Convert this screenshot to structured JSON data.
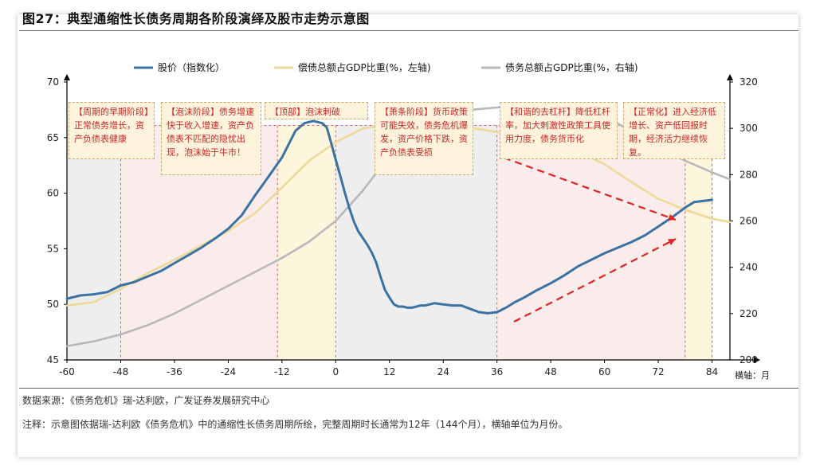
{
  "title": "图27：典型通缩性长债务周期各阶段演绎及股市走势示意图",
  "source": "数据来源：《债务危机》瑞-达利欧，广发证券发展研究中心",
  "note": "注释：示意图依据瑞-达利欧《债务危机》中的通缩性长债务周期所绘，完整周期时长通常为12年（144个月），横轴单位为月份。",
  "annotations": [
    "【周期的早期阶段】正常债务增长，资产负债表健康",
    "【泡沫阶段】债务增速快于收入增速，资产负债表不匹配的隐忧出现，泡沫始于牛市！",
    "【顶部】泡沫刺破",
    "【萧条阶段】货币政策可能失效，债务危机爆发，资产价格下跌，资产负债表受损",
    "【和谐的去杠杆】降低杠杆率，加大刺激性政策工具使用力度，债务货币化",
    "【正常化】进入经济低增长、资产低回报时期，经济活力继续恢复。"
  ],
  "colors": {
    "stock": "#3b72a4",
    "debt_service": "#eed99a",
    "debt": "#b8b8b8",
    "pink_band": "#fbecec",
    "grey_band": "#eeeeee",
    "yellow_band": "#fdf6dd",
    "dashed_red": "#e25555"
  },
  "chart_data": {
    "type": "line",
    "xlabel": "横轴：月",
    "x_ticks": [
      -60,
      -48,
      -36,
      -24,
      -12,
      0,
      12,
      24,
      36,
      48,
      60,
      72,
      84
    ],
    "xlim": [
      -60,
      88
    ],
    "ylim_left": [
      45,
      70
    ],
    "ylim_right": [
      200,
      320
    ],
    "y_ticks_left": [
      45,
      50,
      55,
      60,
      65,
      70
    ],
    "y_ticks_right": [
      200,
      220,
      240,
      260,
      280,
      300,
      320
    ],
    "legend": [
      "股价（指数化）",
      "偿债总额占GDP比重(%，左轴)",
      "债务总额占GDP比重(%，右轴)"
    ],
    "legend_position": "top",
    "phase_boundaries": [
      -48,
      -13,
      0,
      36,
      78,
      84
    ],
    "series": [
      {
        "name": "股价（指数化）",
        "axis": "left",
        "x": [
          -60,
          -57,
          -54,
          -51,
          -48,
          -45,
          -42,
          -39,
          -36,
          -33,
          -30,
          -27,
          -24,
          -21,
          -18,
          -15,
          -12,
          -9,
          -7,
          -5,
          -3,
          -2,
          -1,
          0,
          1,
          2,
          3,
          4,
          5,
          6,
          7,
          8,
          9,
          10,
          11,
          12,
          13,
          14,
          15,
          16,
          17,
          18,
          19,
          20,
          21,
          22,
          24,
          26,
          28,
          30,
          32,
          34,
          36,
          38,
          40,
          42,
          45,
          48,
          51,
          54,
          57,
          60,
          63,
          66,
          69,
          72,
          75,
          78,
          80,
          82,
          84
        ],
        "y": [
          50.5,
          50.8,
          50.9,
          51.1,
          51.7,
          52.0,
          52.5,
          53.0,
          53.7,
          54.4,
          55.1,
          55.9,
          56.8,
          58.0,
          59.8,
          61.5,
          63.2,
          65.6,
          66.3,
          66.5,
          66.3,
          65.9,
          64.5,
          63.0,
          61.6,
          60.1,
          58.7,
          57.5,
          56.6,
          56.0,
          55.4,
          54.7,
          53.8,
          52.5,
          51.3,
          50.6,
          50.0,
          49.8,
          49.8,
          49.7,
          49.7,
          49.8,
          49.9,
          49.9,
          50.0,
          50.1,
          50.0,
          49.9,
          49.9,
          49.6,
          49.3,
          49.2,
          49.3,
          49.7,
          50.2,
          50.6,
          51.3,
          51.9,
          52.6,
          53.4,
          54.0,
          54.6,
          55.1,
          55.6,
          56.2,
          57.0,
          57.8,
          58.7,
          59.2,
          59.3,
          59.4
        ]
      },
      {
        "name": "偿债总额占GDP比重(%，左轴)",
        "axis": "left",
        "x": [
          -60,
          -54,
          -48,
          -42,
          -36,
          -30,
          -24,
          -18,
          -12,
          -6,
          0,
          6,
          12,
          18,
          24,
          30,
          36,
          42,
          48,
          54,
          60,
          66,
          72,
          78,
          84,
          88
        ],
        "y": [
          49.9,
          50.2,
          51.4,
          52.8,
          54.0,
          55.3,
          56.6,
          58.2,
          60.5,
          62.9,
          64.6,
          65.8,
          66.2,
          66.3,
          66.2,
          65.9,
          65.5,
          65.1,
          64.6,
          63.8,
          62.6,
          61.0,
          59.5,
          58.5,
          57.7,
          57.4
        ]
      },
      {
        "name": "债务总额占GDP比重(%，右轴)",
        "axis": "right",
        "x": [
          -60,
          -54,
          -48,
          -42,
          -36,
          -30,
          -24,
          -18,
          -12,
          -6,
          0,
          6,
          12,
          18,
          24,
          30,
          36,
          40,
          42,
          48,
          54,
          60,
          66,
          72,
          78,
          84,
          88
        ],
        "y": [
          206,
          208,
          211,
          215,
          220,
          226,
          232,
          238,
          244,
          251,
          260,
          273,
          288,
          300,
          306,
          308,
          309,
          310,
          310,
          309,
          308,
          305,
          299,
          292,
          286,
          281,
          278
        ]
      }
    ]
  }
}
